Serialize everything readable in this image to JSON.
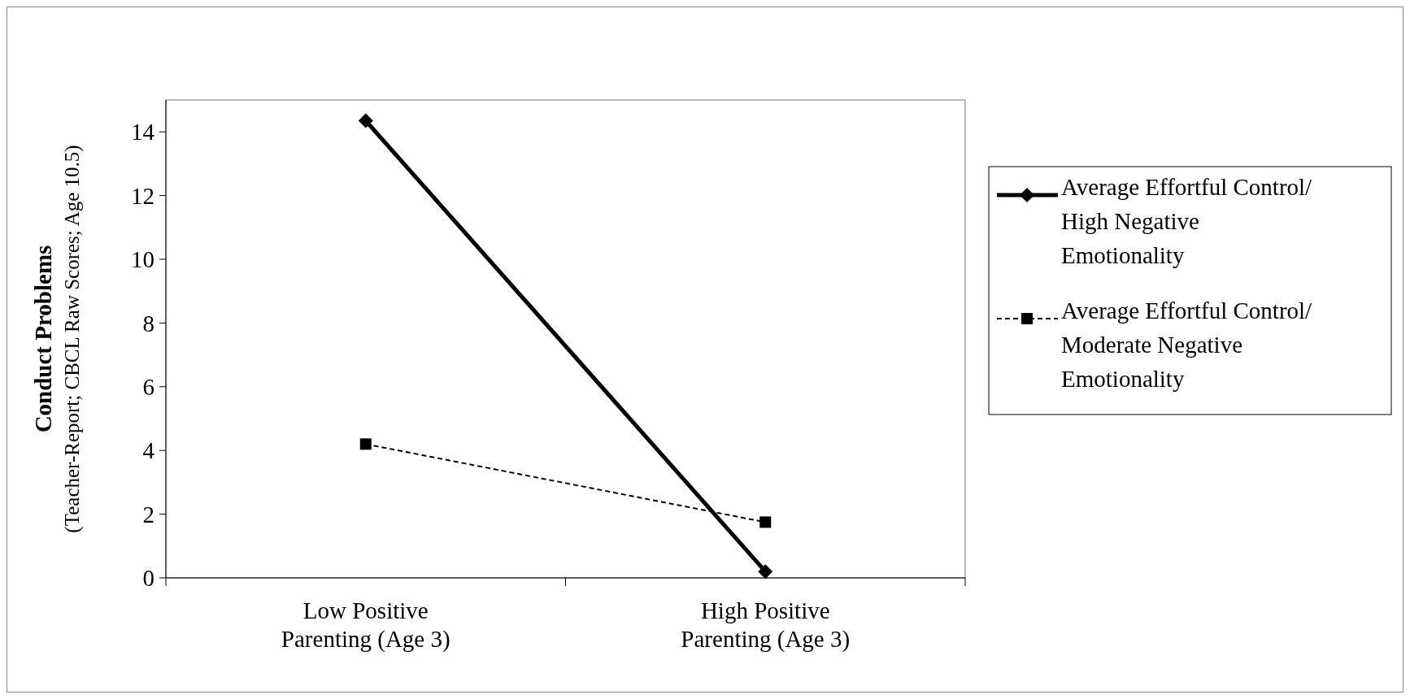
{
  "chart_data": {
    "type": "line",
    "ylabel": "Conduct Problems\n(Teacher-Report; CBCL Raw Scores; Age 10.5)",
    "categories": [
      "Low Positive\nParenting (Age 3)",
      "High Positive\nParenting (Age 3)"
    ],
    "ylim": [
      0,
      15
    ],
    "yticks": [
      0,
      2,
      4,
      6,
      8,
      10,
      12,
      14
    ],
    "grid": false,
    "legend": "right",
    "series": [
      {
        "name": "Average Effortful Control/\nHigh Negative\nEmotionality",
        "color": "#000000",
        "values": [
          14.35,
          0.2
        ],
        "marker": "diamond",
        "line_style": "solid"
      },
      {
        "name": "Average Effortful Control/\nModerate Negative\nEmotionality",
        "color": "#000000",
        "values": [
          4.2,
          1.75
        ],
        "marker": "square",
        "line_style": "dashed"
      }
    ]
  }
}
